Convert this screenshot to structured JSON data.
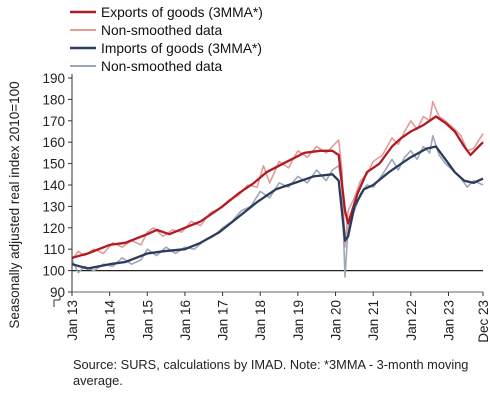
{
  "chart_data": {
    "type": "line",
    "ylabel": "Seasonally adjusted real index 2010=100",
    "ylim": [
      90,
      190
    ],
    "yticks": [
      90,
      100,
      110,
      120,
      130,
      140,
      150,
      160,
      170,
      180,
      190
    ],
    "xlim": [
      "2013-01",
      "2023-12"
    ],
    "xticks": [
      "Jan 13",
      "Jan 14",
      "Jan 15",
      "Jan 16",
      "Jan 17",
      "Jan 18",
      "Jan 19",
      "Jan 20",
      "Jan 21",
      "Jan 22",
      "Jan 23",
      "Dec 23"
    ],
    "reference_line": 100,
    "legend_position": "top-left",
    "colors": {
      "exports_mma": "#b01c24",
      "exports_raw": "#e59a98",
      "imports_mma": "#2c3a5c",
      "imports_raw": "#9da7bb",
      "reference": "#222222"
    },
    "series": [
      {
        "name": "Exports of goods (3MMA*)",
        "points": [
          [
            "2013-01",
            106
          ],
          [
            "2013-06",
            108
          ],
          [
            "2014-01",
            112
          ],
          [
            "2014-06",
            113
          ],
          [
            "2015-01",
            117
          ],
          [
            "2015-04",
            119
          ],
          [
            "2015-08",
            117
          ],
          [
            "2016-01",
            120
          ],
          [
            "2016-06",
            123
          ],
          [
            "2016-10",
            127
          ],
          [
            "2017-01",
            130
          ],
          [
            "2017-06",
            136
          ],
          [
            "2017-11",
            141
          ],
          [
            "2018-03",
            146
          ],
          [
            "2018-07",
            149
          ],
          [
            "2018-11",
            152
          ],
          [
            "2019-03",
            155
          ],
          [
            "2019-08",
            156
          ],
          [
            "2019-12",
            156
          ],
          [
            "2020-02",
            154
          ],
          [
            "2020-04",
            128
          ],
          [
            "2020-05",
            122
          ],
          [
            "2020-08",
            136
          ],
          [
            "2020-11",
            146
          ],
          [
            "2021-03",
            150
          ],
          [
            "2021-07",
            158
          ],
          [
            "2021-10",
            162
          ],
          [
            "2022-01",
            165
          ],
          [
            "2022-05",
            168
          ],
          [
            "2022-09",
            172
          ],
          [
            "2022-12",
            169
          ],
          [
            "2023-03",
            165
          ],
          [
            "2023-06",
            158
          ],
          [
            "2023-08",
            154
          ],
          [
            "2023-12",
            160
          ]
        ]
      },
      {
        "name": "Non-smoothed data",
        "points": [
          [
            "2013-01",
            105
          ],
          [
            "2013-03",
            109
          ],
          [
            "2013-05",
            107
          ],
          [
            "2013-08",
            110
          ],
          [
            "2013-11",
            108
          ],
          [
            "2014-02",
            113
          ],
          [
            "2014-05",
            111
          ],
          [
            "2014-08",
            114
          ],
          [
            "2014-11",
            112
          ],
          [
            "2015-01",
            118
          ],
          [
            "2015-03",
            120
          ],
          [
            "2015-06",
            116
          ],
          [
            "2015-09",
            119
          ],
          [
            "2015-12",
            118
          ],
          [
            "2016-03",
            123
          ],
          [
            "2016-06",
            121
          ],
          [
            "2016-09",
            127
          ],
          [
            "2016-12",
            129
          ],
          [
            "2017-03",
            133
          ],
          [
            "2017-06",
            135
          ],
          [
            "2017-09",
            140
          ],
          [
            "2017-12",
            139
          ],
          [
            "2018-02",
            149
          ],
          [
            "2018-04",
            141
          ],
          [
            "2018-07",
            151
          ],
          [
            "2018-10",
            148
          ],
          [
            "2019-01",
            156
          ],
          [
            "2019-04",
            153
          ],
          [
            "2019-07",
            158
          ],
          [
            "2019-10",
            155
          ],
          [
            "2019-12",
            158
          ],
          [
            "2020-02",
            161
          ],
          [
            "2020-03",
            148
          ],
          [
            "2020-04",
            111
          ],
          [
            "2020-05",
            128
          ],
          [
            "2020-07",
            134
          ],
          [
            "2020-09",
            142
          ],
          [
            "2020-11",
            145
          ],
          [
            "2021-01",
            151
          ],
          [
            "2021-04",
            154
          ],
          [
            "2021-07",
            162
          ],
          [
            "2021-09",
            159
          ],
          [
            "2021-11",
            165
          ],
          [
            "2022-01",
            170
          ],
          [
            "2022-03",
            166
          ],
          [
            "2022-05",
            172
          ],
          [
            "2022-07",
            170
          ],
          [
            "2022-08",
            179
          ],
          [
            "2022-10",
            172
          ],
          [
            "2022-12",
            170
          ],
          [
            "2023-03",
            166
          ],
          [
            "2023-05",
            163
          ],
          [
            "2023-07",
            156
          ],
          [
            "2023-09",
            157
          ],
          [
            "2023-12",
            164
          ]
        ]
      },
      {
        "name": "Imports of goods (3MMA*)",
        "points": [
          [
            "2013-01",
            103
          ],
          [
            "2013-06",
            101
          ],
          [
            "2014-01",
            103
          ],
          [
            "2014-06",
            104
          ],
          [
            "2015-01",
            108
          ],
          [
            "2015-06",
            109
          ],
          [
            "2016-01",
            110
          ],
          [
            "2016-06",
            113
          ],
          [
            "2016-12",
            118
          ],
          [
            "2017-06",
            125
          ],
          [
            "2017-12",
            132
          ],
          [
            "2018-06",
            138
          ],
          [
            "2018-12",
            141
          ],
          [
            "2019-06",
            144
          ],
          [
            "2019-12",
            145
          ],
          [
            "2020-02",
            142
          ],
          [
            "2020-04",
            114
          ],
          [
            "2020-05",
            116
          ],
          [
            "2020-07",
            130
          ],
          [
            "2020-10",
            138
          ],
          [
            "2021-01",
            140
          ],
          [
            "2021-06",
            146
          ],
          [
            "2021-10",
            150
          ],
          [
            "2022-01",
            153
          ],
          [
            "2022-06",
            157
          ],
          [
            "2022-09",
            158
          ],
          [
            "2022-12",
            152
          ],
          [
            "2023-03",
            146
          ],
          [
            "2023-06",
            142
          ],
          [
            "2023-09",
            141
          ],
          [
            "2023-12",
            143
          ]
        ]
      },
      {
        "name": "Non-smoothed data",
        "points": [
          [
            "2013-01",
            105
          ],
          [
            "2013-03",
            99
          ],
          [
            "2013-05",
            102
          ],
          [
            "2013-08",
            100
          ],
          [
            "2013-11",
            103
          ],
          [
            "2014-02",
            102
          ],
          [
            "2014-05",
            106
          ],
          [
            "2014-08",
            103
          ],
          [
            "2014-11",
            105
          ],
          [
            "2015-01",
            110
          ],
          [
            "2015-04",
            107
          ],
          [
            "2015-07",
            111
          ],
          [
            "2015-10",
            108
          ],
          [
            "2016-01",
            111
          ],
          [
            "2016-04",
            110
          ],
          [
            "2016-07",
            114
          ],
          [
            "2016-10",
            116
          ],
          [
            "2017-01",
            120
          ],
          [
            "2017-04",
            123
          ],
          [
            "2017-07",
            128
          ],
          [
            "2017-10",
            130
          ],
          [
            "2018-01",
            137
          ],
          [
            "2018-04",
            134
          ],
          [
            "2018-07",
            141
          ],
          [
            "2018-10",
            139
          ],
          [
            "2019-01",
            144
          ],
          [
            "2019-04",
            141
          ],
          [
            "2019-07",
            147
          ],
          [
            "2019-10",
            142
          ],
          [
            "2019-12",
            147
          ],
          [
            "2020-02",
            149
          ],
          [
            "2020-03",
            140
          ],
          [
            "2020-04",
            97
          ],
          [
            "2020-05",
            120
          ],
          [
            "2020-07",
            128
          ],
          [
            "2020-09",
            136
          ],
          [
            "2020-11",
            140
          ],
          [
            "2021-01",
            139
          ],
          [
            "2021-04",
            145
          ],
          [
            "2021-07",
            152
          ],
          [
            "2021-09",
            147
          ],
          [
            "2021-11",
            153
          ],
          [
            "2022-01",
            156
          ],
          [
            "2022-03",
            152
          ],
          [
            "2022-05",
            158
          ],
          [
            "2022-07",
            155
          ],
          [
            "2022-08",
            163
          ],
          [
            "2022-10",
            154
          ],
          [
            "2022-12",
            150
          ],
          [
            "2023-03",
            146
          ],
          [
            "2023-05",
            143
          ],
          [
            "2023-07",
            139
          ],
          [
            "2023-09",
            142
          ],
          [
            "2023-12",
            140
          ]
        ]
      }
    ]
  },
  "note": "Source: SURS, calculations by IMAD. Note: *3MMA - 3-month moving average."
}
